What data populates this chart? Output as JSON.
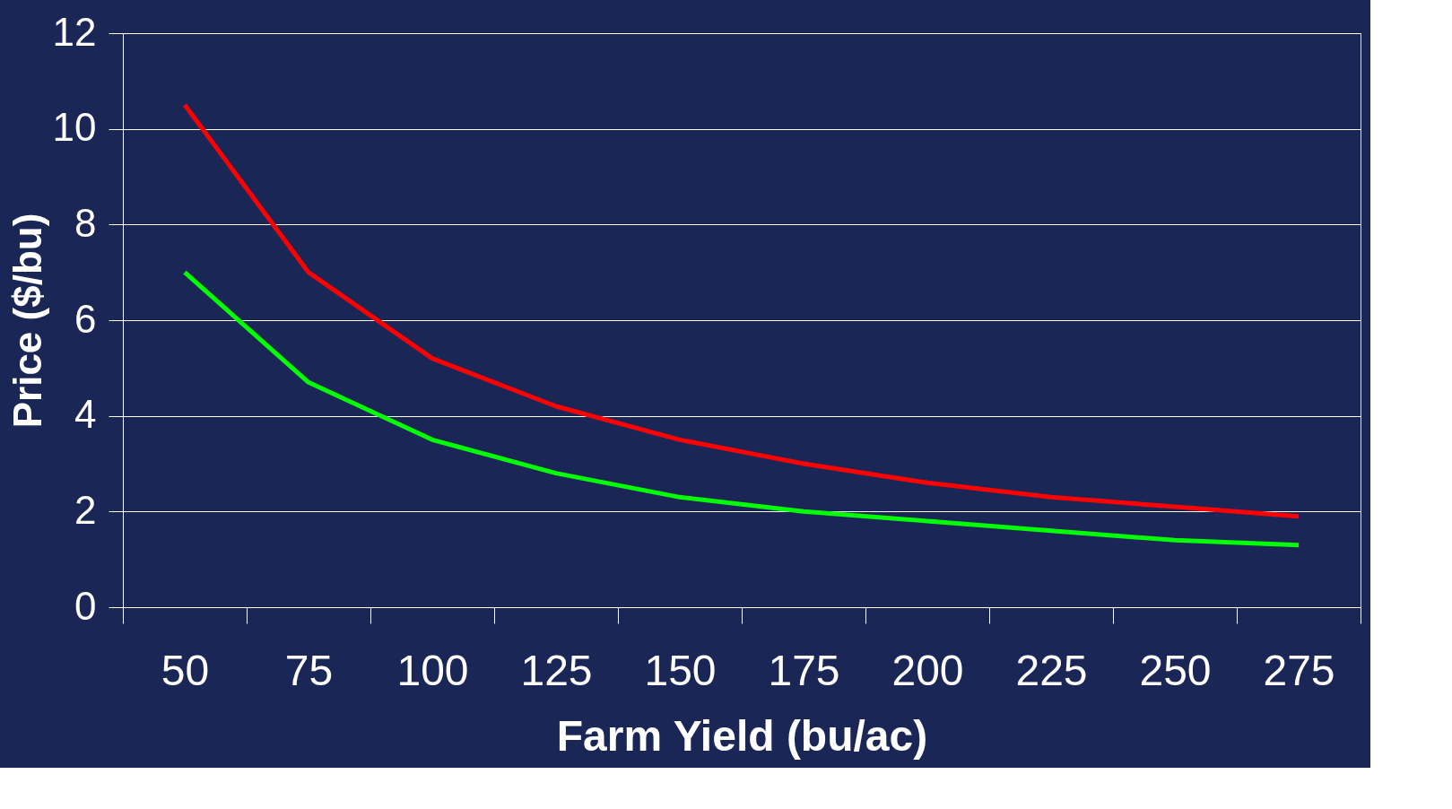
{
  "chart_data": {
    "type": "line",
    "xlabel": "Farm Yield (bu/ac)",
    "ylabel": "Price ($/bu)",
    "categories": [
      "50",
      "75",
      "100",
      "125",
      "150",
      "175",
      "200",
      "225",
      "250",
      "275"
    ],
    "series": [
      {
        "color": "#ff0000",
        "values": [
          10.5,
          7.0,
          5.2,
          4.2,
          3.5,
          3.0,
          2.6,
          2.3,
          2.1,
          1.9
        ]
      },
      {
        "color": "#00ff00",
        "values": [
          7.0,
          4.7,
          3.5,
          2.8,
          2.3,
          2.0,
          1.8,
          1.6,
          1.4,
          1.3
        ]
      }
    ],
    "ylim": [
      0,
      12
    ],
    "yticks": [
      0,
      2,
      4,
      6,
      8,
      10,
      12
    ],
    "grid": "y",
    "marker": "none",
    "line_style": "solid"
  }
}
